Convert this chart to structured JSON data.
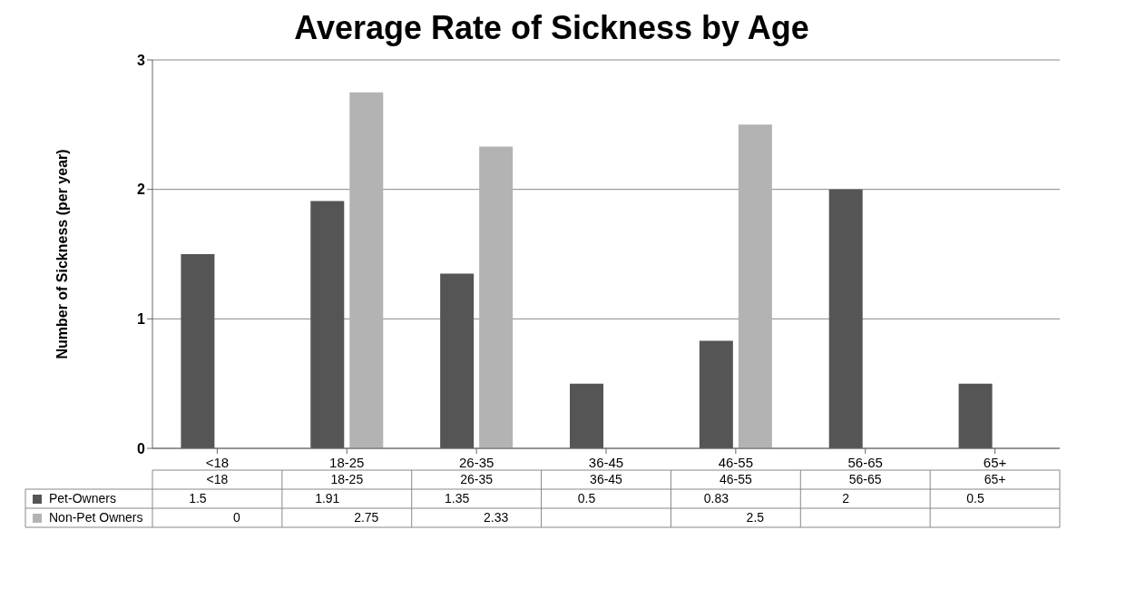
{
  "chart_data": {
    "type": "bar",
    "title": "Average Rate of Sickness by Age",
    "ylabel": "Number of Sickness (per year)",
    "categories": [
      "<18",
      "18-25",
      "26-35",
      "36-45",
      "46-55",
      "56-65",
      "65+"
    ],
    "series": [
      {
        "name": "Pet-Owners",
        "color": "#555555",
        "values": [
          1.5,
          1.91,
          1.35,
          0.5,
          0.83,
          2,
          0.5
        ]
      },
      {
        "name": "Non-Pet Owners",
        "color": "#b3b3b3",
        "values": [
          0,
          2.75,
          2.33,
          null,
          2.5,
          null,
          null
        ]
      }
    ],
    "ylim": [
      0,
      3
    ],
    "yticks": [
      0,
      1,
      2,
      3
    ],
    "grid": "y",
    "legend": "bottom",
    "data_labels": true
  }
}
